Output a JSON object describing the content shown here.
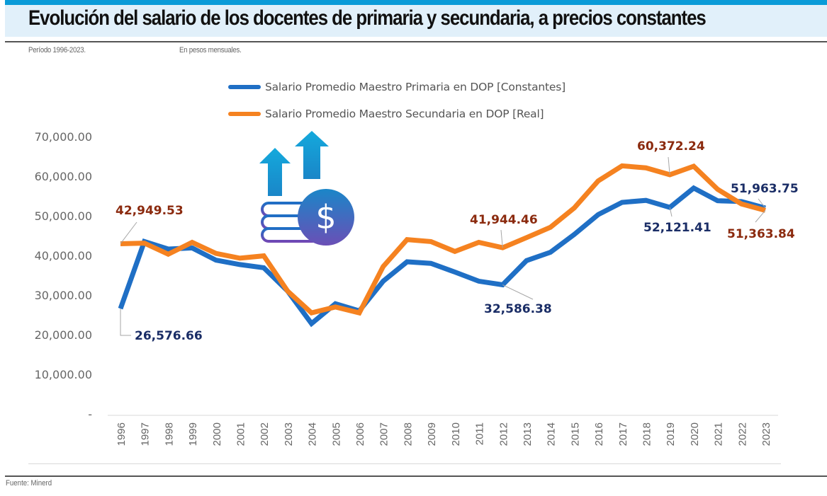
{
  "header": {
    "title": "Evolución del salario de los docentes de primaria y secundaria, a precios constantes",
    "period": "Período 1996-2023.",
    "units": "En pesos mensuales."
  },
  "footer": {
    "source": "Fuente: Minerd"
  },
  "decoration": {
    "icon": "money-growth-icon",
    "dollar_symbol": "$"
  },
  "colors": {
    "primaria": "#1f6fc5",
    "secundaria": "#f58220",
    "label_primaria": "#1a2d66",
    "label_secundaria": "#8b2a0e",
    "axis_text": "#666666",
    "title_band": "#e1f0fa",
    "top_bar": "#0a9bd8"
  },
  "chart_data": {
    "type": "line",
    "title": "Evolución del salario de los docentes de primaria y secundaria, a precios constantes",
    "xlabel": "",
    "ylabel": "",
    "ylim": [
      0,
      70000
    ],
    "yticks": [
      0,
      10000,
      20000,
      30000,
      40000,
      50000,
      60000,
      70000
    ],
    "ytick_labels": [
      "-",
      "10,000.00",
      "20,000.00",
      "30,000.00",
      "40,000.00",
      "50,000.00",
      "60,000.00",
      "70,000.00"
    ],
    "grid": false,
    "legend_position": "top-center",
    "categories": [
      "1996",
      "1997",
      "1998",
      "1999",
      "2000",
      "2001",
      "2002",
      "2003",
      "2004",
      "2005",
      "2006",
      "2007",
      "2008",
      "2009",
      "2010",
      "2011",
      "2012",
      "2013",
      "2014",
      "2015",
      "2016",
      "2017",
      "2018",
      "2019",
      "2020",
      "2021",
      "2022",
      "2023"
    ],
    "series": [
      {
        "name": "Salario Promedio Maestro Primaria en DOP [Constantes]",
        "color": "#1f6fc5",
        "values": [
          26576.66,
          43500,
          41600,
          41900,
          38800,
          37700,
          36900,
          31000,
          22800,
          27800,
          26000,
          33500,
          38400,
          38000,
          35800,
          33500,
          32586.38,
          38700,
          40800,
          45300,
          50300,
          53400,
          53900,
          52121.41,
          57000,
          53800,
          53600,
          51963.75
        ]
      },
      {
        "name": "Salario Promedio Maestro Secundaria en DOP [Real]",
        "color": "#f58220",
        "values": [
          42949.53,
          43100,
          40300,
          43300,
          40500,
          39300,
          39900,
          31000,
          25500,
          27000,
          25500,
          37200,
          44000,
          43500,
          41000,
          43300,
          41944.46,
          44500,
          47100,
          52000,
          58800,
          62600,
          62100,
          60372.24,
          62500,
          56700,
          53000,
          51363.84
        ]
      }
    ],
    "annotations": [
      {
        "series": 0,
        "category": "1996",
        "text": "26,576.66"
      },
      {
        "series": 0,
        "category": "2012",
        "text": "32,586.38"
      },
      {
        "series": 0,
        "category": "2019",
        "text": "52,121.41"
      },
      {
        "series": 0,
        "category": "2023",
        "text": "51,963.75"
      },
      {
        "series": 1,
        "category": "1996",
        "text": "42,949.53"
      },
      {
        "series": 1,
        "category": "2012",
        "text": "41,944.46"
      },
      {
        "series": 1,
        "category": "2019",
        "text": "60,372.24"
      },
      {
        "series": 1,
        "category": "2023",
        "text": "51,363.84"
      }
    ]
  }
}
